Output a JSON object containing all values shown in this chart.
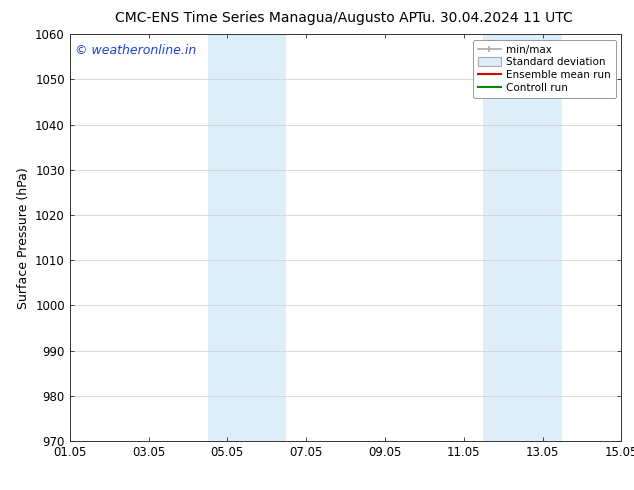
{
  "title_left": "CMC-ENS Time Series Managua/Augusto AP",
  "title_right": "Tu. 30.04.2024 11 UTC",
  "ylabel": "Surface Pressure (hPa)",
  "ylim": [
    970,
    1060
  ],
  "yticks": [
    970,
    980,
    990,
    1000,
    1010,
    1020,
    1030,
    1040,
    1050,
    1060
  ],
  "xlabel_ticks": [
    "01.05",
    "03.05",
    "05.05",
    "07.05",
    "09.05",
    "11.05",
    "13.05",
    "15.05"
  ],
  "xtick_positions": [
    0,
    2,
    4,
    6,
    8,
    10,
    12,
    14
  ],
  "x_start_days": 0,
  "x_end_days": 14,
  "shaded_regions": [
    {
      "start": 3.5,
      "end": 5.5
    },
    {
      "start": 10.5,
      "end": 12.5
    }
  ],
  "shaded_color": "#ddeef8",
  "watermark": "© weatheronline.in",
  "watermark_color": "#1a44cc",
  "watermark_fontsize": 9,
  "legend_labels": [
    "min/max",
    "Standard deviation",
    "Ensemble mean run",
    "Controll run"
  ],
  "bg_color": "#ffffff",
  "grid_color": "#cccccc",
  "title_fontsize": 10,
  "tick_fontsize": 8.5,
  "ylabel_fontsize": 9
}
